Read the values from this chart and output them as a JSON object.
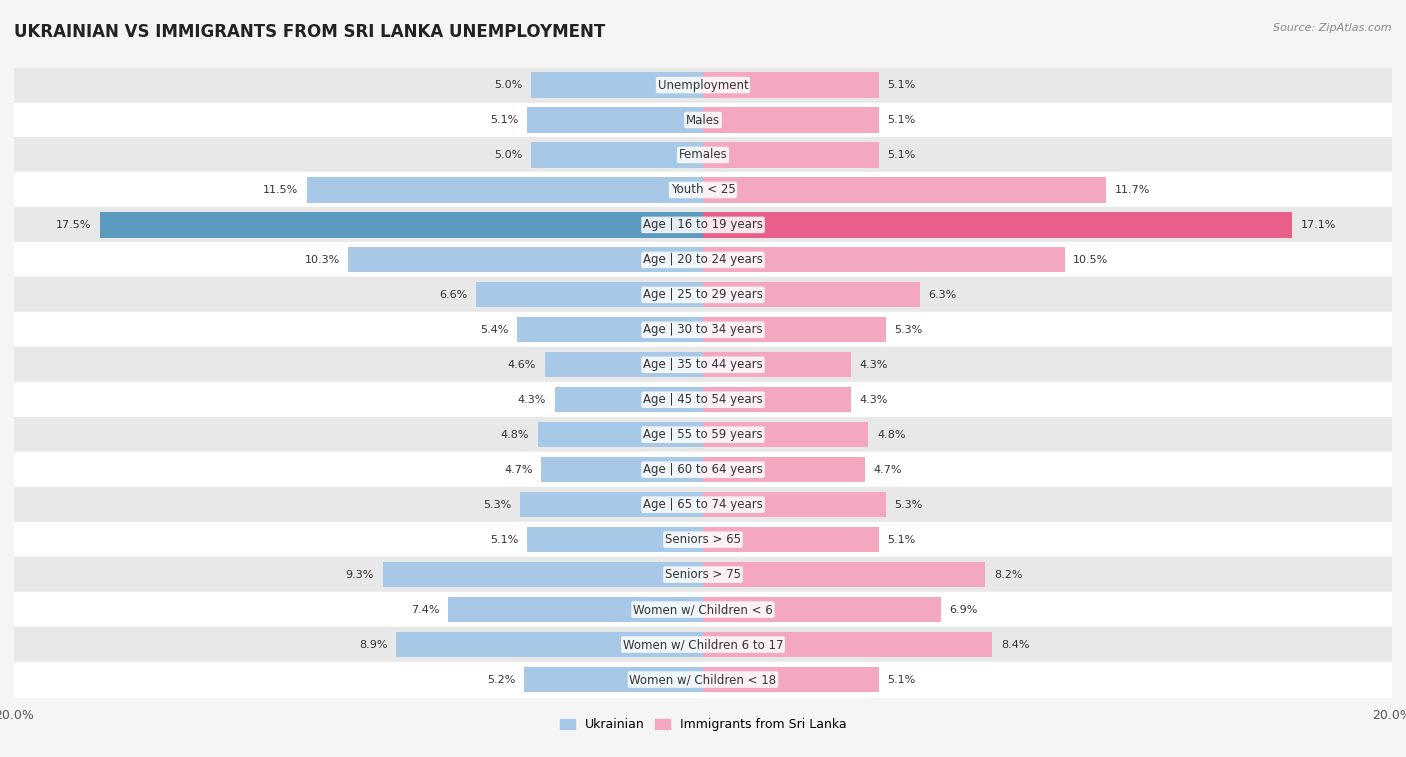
{
  "title": "UKRAINIAN VS IMMIGRANTS FROM SRI LANKA UNEMPLOYMENT",
  "source": "Source: ZipAtlas.com",
  "categories": [
    "Unemployment",
    "Males",
    "Females",
    "Youth < 25",
    "Age | 16 to 19 years",
    "Age | 20 to 24 years",
    "Age | 25 to 29 years",
    "Age | 30 to 34 years",
    "Age | 35 to 44 years",
    "Age | 45 to 54 years",
    "Age | 55 to 59 years",
    "Age | 60 to 64 years",
    "Age | 65 to 74 years",
    "Seniors > 65",
    "Seniors > 75",
    "Women w/ Children < 6",
    "Women w/ Children 6 to 17",
    "Women w/ Children < 18"
  ],
  "ukrainian_values": [
    5.0,
    5.1,
    5.0,
    11.5,
    17.5,
    10.3,
    6.6,
    5.4,
    4.6,
    4.3,
    4.8,
    4.7,
    5.3,
    5.1,
    9.3,
    7.4,
    8.9,
    5.2
  ],
  "srilanka_values": [
    5.1,
    5.1,
    5.1,
    11.7,
    17.1,
    10.5,
    6.3,
    5.3,
    4.3,
    4.3,
    4.8,
    4.7,
    5.3,
    5.1,
    8.2,
    6.9,
    8.4,
    5.1
  ],
  "ukrainian_color": "#a8c8e8",
  "srilanka_color": "#f4a8c0",
  "highlight_ukrainian_color": "#5b9abf",
  "highlight_srilanka_color": "#e8608a",
  "background_color": "#f5f5f5",
  "row_light_color": "#ffffff",
  "row_dark_color": "#e8e8e8",
  "xlim": 20.0,
  "legend_ukrainian": "Ukrainian",
  "legend_srilanka": "Immigrants from Sri Lanka",
  "title_fontsize": 12,
  "label_fontsize": 8.5,
  "value_fontsize": 8.0,
  "bar_height": 0.72
}
